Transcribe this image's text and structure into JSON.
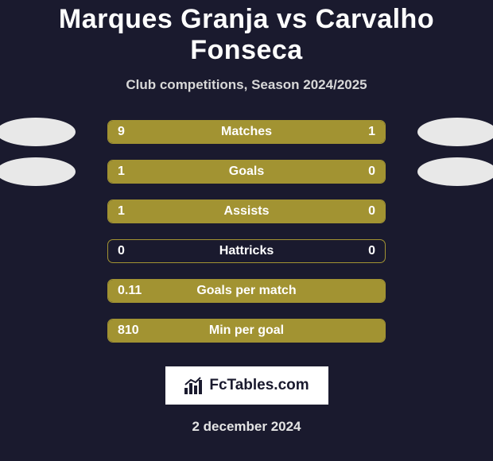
{
  "title": "Marques Granja vs Carvalho Fonseca",
  "subtitle": "Club competitions, Season 2024/2025",
  "date": "2 december 2024",
  "logo_text": "FcTables.com",
  "colors": {
    "bar_brand": "#a29332",
    "background": "#1a1a2e",
    "avatar": "#e8e8e8",
    "logo_bg": "#ffffff",
    "logo_text": "#1a1a2e",
    "text": "#ffffff"
  },
  "fonts": {
    "title_size": 34,
    "subtitle_size": 17,
    "bar_label_size": 16,
    "date_size": 17
  },
  "stats": [
    {
      "label": "Matches",
      "left_val": "9",
      "right_val": "1",
      "left_pct": 90,
      "right_pct": 10,
      "show_avatars": true
    },
    {
      "label": "Goals",
      "left_val": "1",
      "right_val": "0",
      "left_pct": 100,
      "right_pct": 0,
      "show_avatars": true
    },
    {
      "label": "Assists",
      "left_val": "1",
      "right_val": "0",
      "left_pct": 100,
      "right_pct": 0,
      "show_avatars": false
    },
    {
      "label": "Hattricks",
      "left_val": "0",
      "right_val": "0",
      "left_pct": 0,
      "right_pct": 0,
      "show_avatars": false
    },
    {
      "label": "Goals per match",
      "left_val": "0.11",
      "right_val": "",
      "left_pct": 100,
      "right_pct": 0,
      "show_avatars": false
    },
    {
      "label": "Min per goal",
      "left_val": "810",
      "right_val": "",
      "left_pct": 100,
      "right_pct": 0,
      "show_avatars": false
    }
  ]
}
